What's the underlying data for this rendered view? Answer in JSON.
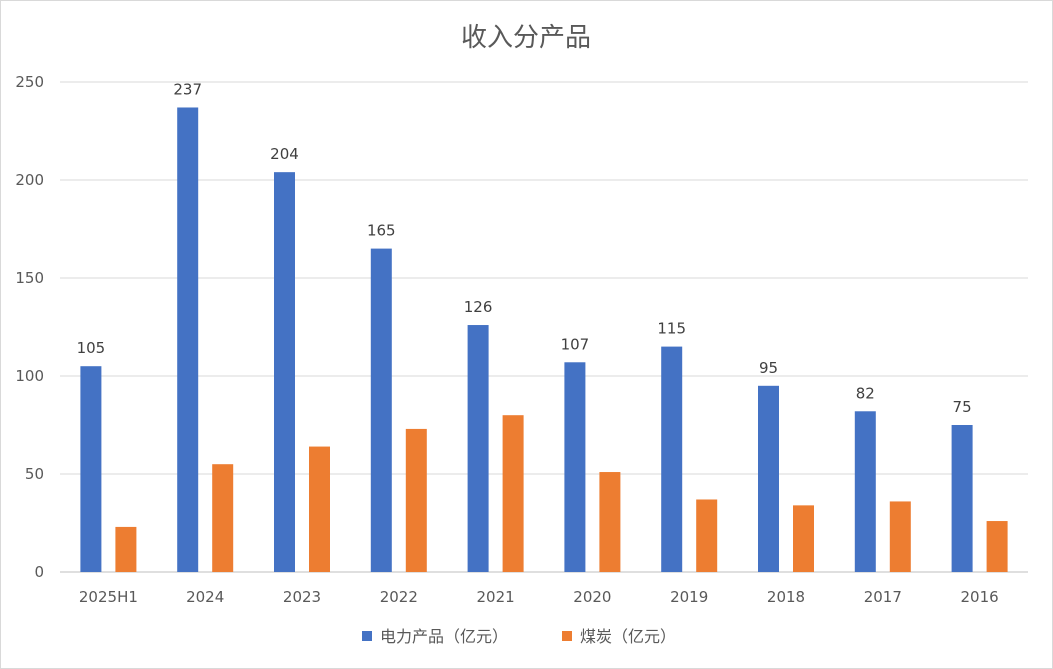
{
  "chart_data": {
    "type": "bar",
    "title": "收入分产品",
    "categories": [
      "2025H1",
      "2024",
      "2023",
      "2022",
      "2021",
      "2020",
      "2019",
      "2018",
      "2017",
      "2016"
    ],
    "series": [
      {
        "name": "电力产品（亿元）",
        "color": "#4472c4",
        "values": [
          105,
          237,
          204,
          165,
          126,
          107,
          115,
          95,
          82,
          75
        ],
        "data_labels": [
          "105",
          "237",
          "204",
          "165",
          "126",
          "107",
          "115",
          "95",
          "82",
          "75"
        ]
      },
      {
        "name": "煤炭（亿元）",
        "color": "#ed7d31",
        "values": [
          23,
          55,
          64,
          73,
          80,
          51,
          37,
          34,
          36,
          26
        ]
      }
    ],
    "xlabel": "",
    "ylabel": "",
    "ylim": [
      0,
      250
    ],
    "yticks": [
      "0",
      "50",
      "100",
      "150",
      "200",
      "250"
    ],
    "grid": true,
    "legend_position": "bottom"
  }
}
